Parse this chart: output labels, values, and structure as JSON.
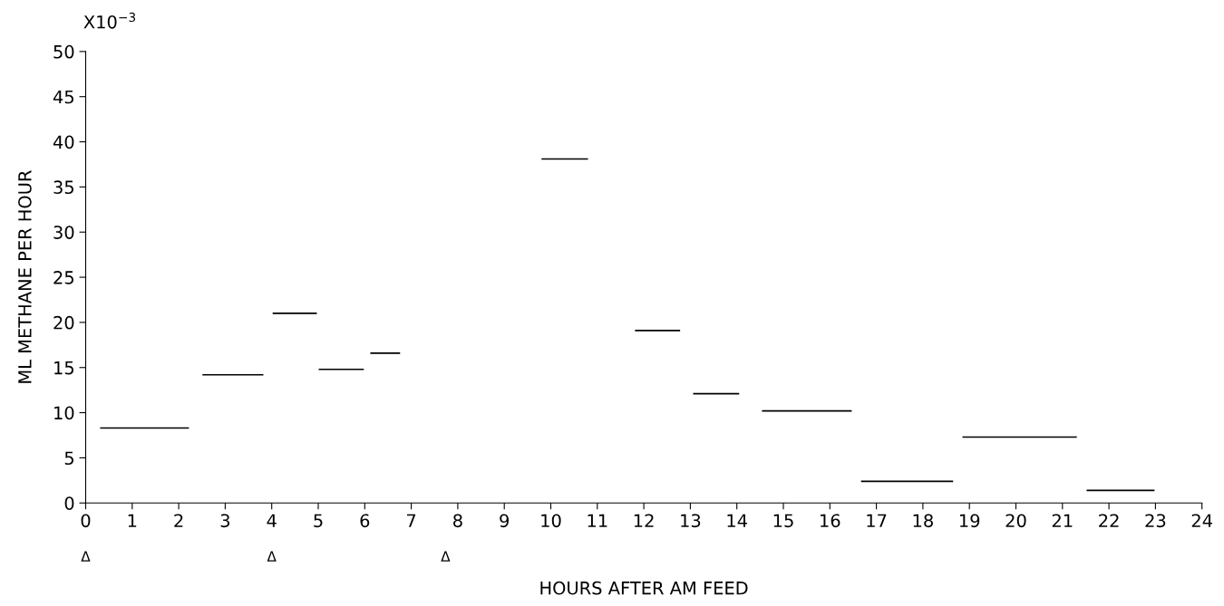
{
  "chart_data": {
    "type": "line",
    "xlabel": "HOURS AFTER AM FEED",
    "ylabel": "ML METHANE PER HOUR",
    "xlim": [
      0,
      24
    ],
    "xticks": [
      0,
      1,
      2,
      3,
      4,
      5,
      6,
      7,
      8,
      9,
      10,
      11,
      12,
      13,
      14,
      15,
      16,
      17,
      18,
      19,
      20,
      21,
      22,
      23,
      24
    ],
    "ylim": [
      0,
      50
    ],
    "yticks": [
      0,
      5,
      10,
      15,
      20,
      25,
      30,
      35,
      40,
      45,
      50
    ],
    "grid": false,
    "marker": "none",
    "line_style": "solid",
    "series": [
      {
        "color": "#000000",
        "x": [
          0.31,
          2.22
        ],
        "values": [
          8.3,
          8.3
        ]
      },
      {
        "color": "#000000",
        "x": [
          2.51,
          3.82
        ],
        "values": [
          14.2,
          14.2
        ]
      },
      {
        "color": "#000000",
        "x": [
          4.02,
          4.97
        ],
        "values": [
          21.0,
          21.0
        ]
      },
      {
        "color": "#000000",
        "x": [
          5.01,
          5.98
        ],
        "values": [
          14.8,
          14.8
        ]
      },
      {
        "color": "#000000",
        "x": [
          6.12,
          6.76
        ],
        "values": [
          16.6,
          16.6
        ]
      },
      {
        "color": "#000000",
        "x": [
          9.8,
          10.8
        ],
        "values": [
          38.1,
          38.1
        ]
      },
      {
        "color": "#000000",
        "x": [
          11.81,
          12.78
        ],
        "values": [
          19.1,
          19.1
        ]
      },
      {
        "color": "#000000",
        "x": [
          13.06,
          14.05
        ],
        "values": [
          12.1,
          12.1
        ]
      },
      {
        "color": "#000000",
        "x": [
          14.54,
          16.47
        ],
        "values": [
          10.2,
          10.2
        ]
      },
      {
        "color": "#000000",
        "x": [
          16.67,
          18.65
        ],
        "values": [
          2.4,
          2.4
        ]
      },
      {
        "color": "#000000",
        "x": [
          18.85,
          21.31
        ],
        "values": [
          7.3,
          7.3
        ]
      },
      {
        "color": "#000000",
        "x": [
          21.52,
          22.98
        ],
        "values": [
          1.4,
          1.4
        ]
      }
    ],
    "annotations": [
      "X10$^{−3}$",
      "Δ",
      "Δ",
      "Δ"
    ]
  }
}
